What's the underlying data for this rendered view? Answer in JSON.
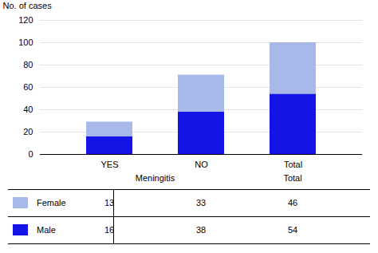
{
  "chart_data": {
    "type": "bar",
    "stacked": true,
    "categories": [
      "YES",
      "NO",
      "Total"
    ],
    "series": [
      {
        "name": "Male",
        "color": "#1414e6",
        "values": [
          16,
          38,
          54
        ]
      },
      {
        "name": "Female",
        "color": "#a8b8e8",
        "values": [
          13,
          33,
          46
        ]
      }
    ],
    "ylabel": "No. of cases",
    "xlabel": "Meningitis",
    "ylim": [
      0,
      120
    ],
    "yticks": [
      0,
      20,
      40,
      60,
      80,
      100,
      120
    ],
    "grid": true,
    "legend": "bottom"
  }
}
